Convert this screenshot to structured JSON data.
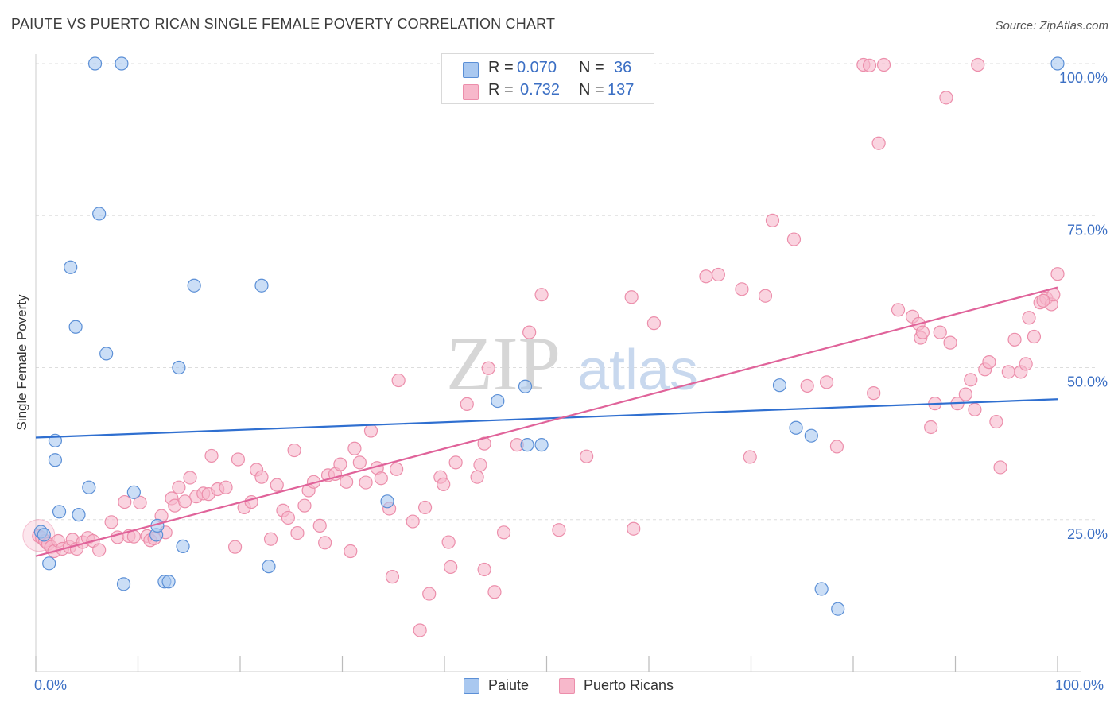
{
  "header": {
    "title": "PAIUTE VS PUERTO RICAN SINGLE FEMALE POVERTY CORRELATION CHART",
    "source": "Source: ZipAtlas.com"
  },
  "watermark": {
    "zip": "ZIP",
    "atlas": "atlas"
  },
  "stats": {
    "rows": [
      {
        "r_label": "R =",
        "r_value": "0.070",
        "n_label": "N =",
        "n_value": "36"
      },
      {
        "r_label": "R =",
        "r_value": "0.732",
        "n_label": "N =",
        "n_value": "137"
      }
    ]
  },
  "colors": {
    "paiute_fill": "#a9c8f0",
    "paiute_stroke": "#5b8fd6",
    "paiute_line": "#2f6fd0",
    "pr_fill": "#f7b8cb",
    "pr_stroke": "#ec8eab",
    "pr_line": "#e0639a",
    "axis_label": "#3b6fc4",
    "grid": "#dddddd"
  },
  "chart_data": {
    "type": "scatter",
    "title": "PAIUTE VS PUERTO RICAN SINGLE FEMALE POVERTY CORRELATION CHART",
    "xlabel": "",
    "ylabel": "Single Female Poverty",
    "xlim": [
      0,
      100
    ],
    "ylim": [
      0,
      100
    ],
    "x_tick_labels": [
      "0.0%",
      "100.0%"
    ],
    "y_tick_labels": [
      "25.0%",
      "50.0%",
      "75.0%",
      "100.0%"
    ],
    "y_ticks": [
      25,
      50,
      75,
      100
    ],
    "grid": true,
    "legend": [
      "Paiute",
      "Puerto Ricans"
    ],
    "series": [
      {
        "name": "Paiute",
        "trend": {
          "x": [
            0,
            100
          ],
          "y": [
            38.5,
            44.8
          ]
        },
        "points": [
          [
            5.8,
            100
          ],
          [
            8.4,
            100
          ],
          [
            100,
            100
          ],
          [
            6.2,
            75.3
          ],
          [
            3.4,
            66.5
          ],
          [
            3.9,
            56.7
          ],
          [
            6.9,
            52.3
          ],
          [
            15.5,
            63.5
          ],
          [
            22.1,
            63.5
          ],
          [
            14,
            50
          ],
          [
            1.9,
            38
          ],
          [
            1.9,
            34.8
          ],
          [
            5.2,
            30.3
          ],
          [
            9.6,
            29.5
          ],
          [
            2.3,
            26.3
          ],
          [
            4.2,
            25.8
          ],
          [
            0.5,
            23
          ],
          [
            11.8,
            22.5
          ],
          [
            11.9,
            24
          ],
          [
            1.3,
            17.8
          ],
          [
            14.4,
            20.6
          ],
          [
            8.6,
            14.4
          ],
          [
            12.6,
            14.8
          ],
          [
            13,
            14.8
          ],
          [
            22.8,
            17.3
          ],
          [
            34.4,
            28
          ],
          [
            49.5,
            37.3
          ],
          [
            45.2,
            44.5
          ],
          [
            48.1,
            37.3
          ],
          [
            47.9,
            46.9
          ],
          [
            72.8,
            47.1
          ],
          [
            74.4,
            40.1
          ],
          [
            75.9,
            38.8
          ],
          [
            76.9,
            13.6
          ],
          [
            78.5,
            10.3
          ],
          [
            0.8,
            22.5
          ]
        ]
      },
      {
        "name": "Puerto Ricans",
        "trend": {
          "x": [
            0,
            100
          ],
          "y": [
            19,
            63.2
          ]
        },
        "points": [
          [
            0.3,
            22.3
          ],
          [
            0.6,
            22
          ],
          [
            0.9,
            21.5
          ],
          [
            1.2,
            21
          ],
          [
            1.5,
            20.5
          ],
          [
            1.8,
            19.8
          ],
          [
            2.2,
            21.5
          ],
          [
            2.6,
            20.2
          ],
          [
            3.3,
            20.5
          ],
          [
            3.6,
            21.7
          ],
          [
            4,
            20.2
          ],
          [
            4.6,
            21.3
          ],
          [
            5.1,
            22
          ],
          [
            5.6,
            21.5
          ],
          [
            6.2,
            20
          ],
          [
            7.4,
            24.6
          ],
          [
            8,
            22.1
          ],
          [
            8.7,
            27.9
          ],
          [
            9.1,
            22.3
          ],
          [
            9.6,
            22.2
          ],
          [
            10.2,
            27.8
          ],
          [
            10.9,
            22.3
          ],
          [
            11.2,
            21.6
          ],
          [
            11.6,
            21.9
          ],
          [
            12.3,
            25.6
          ],
          [
            12.7,
            22.9
          ],
          [
            13.3,
            28.5
          ],
          [
            13.6,
            27.3
          ],
          [
            14,
            30.3
          ],
          [
            14.6,
            28
          ],
          [
            15.1,
            31.9
          ],
          [
            15.7,
            28.8
          ],
          [
            16.4,
            29.3
          ],
          [
            16.9,
            29.2
          ],
          [
            17.2,
            35.5
          ],
          [
            17.8,
            30
          ],
          [
            18.6,
            30.3
          ],
          [
            19.5,
            20.5
          ],
          [
            19.8,
            34.9
          ],
          [
            20.4,
            27
          ],
          [
            21.1,
            27.9
          ],
          [
            21.6,
            33.2
          ],
          [
            22.1,
            32
          ],
          [
            23.6,
            30.7
          ],
          [
            23,
            21.8
          ],
          [
            24.2,
            26.5
          ],
          [
            24.7,
            25.3
          ],
          [
            25.3,
            36.4
          ],
          [
            25.6,
            22.8
          ],
          [
            26.3,
            27.3
          ],
          [
            26.7,
            29.8
          ],
          [
            27.2,
            31.2
          ],
          [
            27.8,
            24
          ],
          [
            28.3,
            21.2
          ],
          [
            28.6,
            32.3
          ],
          [
            29.3,
            32.5
          ],
          [
            29.8,
            34.1
          ],
          [
            30.4,
            31.2
          ],
          [
            30.8,
            19.8
          ],
          [
            31.2,
            36.7
          ],
          [
            31.7,
            34.4
          ],
          [
            32.3,
            31.1
          ],
          [
            32.8,
            39.6
          ],
          [
            33.4,
            33.5
          ],
          [
            33.8,
            31.8
          ],
          [
            35.3,
            33.3
          ],
          [
            34.6,
            26.8
          ],
          [
            35.5,
            47.9
          ],
          [
            34.9,
            15.6
          ],
          [
            36.9,
            24.7
          ],
          [
            38.1,
            27
          ],
          [
            38.5,
            12.8
          ],
          [
            37.6,
            6.8
          ],
          [
            39.6,
            32
          ],
          [
            39.9,
            30.8
          ],
          [
            40.4,
            21.3
          ],
          [
            40.6,
            17.2
          ],
          [
            41.1,
            34.4
          ],
          [
            42.2,
            44
          ],
          [
            43.5,
            34
          ],
          [
            43.9,
            16.8
          ],
          [
            43.2,
            32
          ],
          [
            43.9,
            37.5
          ],
          [
            44.9,
            13.1
          ],
          [
            44.3,
            49.9
          ],
          [
            45.8,
            22.9
          ],
          [
            47.1,
            37.3
          ],
          [
            48.3,
            55.8
          ],
          [
            49.5,
            62
          ],
          [
            51.2,
            23.3
          ],
          [
            53.9,
            35.4
          ],
          [
            58.3,
            61.6
          ],
          [
            58.5,
            23.5
          ],
          [
            60.5,
            57.3
          ],
          [
            65.6,
            65
          ],
          [
            66.8,
            65.3
          ],
          [
            69.1,
            62.9
          ],
          [
            69.9,
            35.3
          ],
          [
            71.4,
            61.8
          ],
          [
            72.1,
            74.2
          ],
          [
            74.2,
            71.1
          ],
          [
            75.5,
            47
          ],
          [
            77.4,
            47.6
          ],
          [
            78.4,
            37
          ],
          [
            81,
            99.8
          ],
          [
            81.6,
            99.7
          ],
          [
            82,
            45.8
          ],
          [
            82.5,
            86.9
          ],
          [
            83,
            99.8
          ],
          [
            84.4,
            59.5
          ],
          [
            85.8,
            58.4
          ],
          [
            86.4,
            57.2
          ],
          [
            86.6,
            54.9
          ],
          [
            86.8,
            55.8
          ],
          [
            87.6,
            40.2
          ],
          [
            88,
            44.1
          ],
          [
            88.5,
            55.8
          ],
          [
            89.1,
            94.4
          ],
          [
            89.5,
            54.1
          ],
          [
            90.2,
            44.1
          ],
          [
            91,
            45.6
          ],
          [
            91.5,
            48
          ],
          [
            91.9,
            43.1
          ],
          [
            92.2,
            99.8
          ],
          [
            92.9,
            49.7
          ],
          [
            93.3,
            50.9
          ],
          [
            94,
            41.1
          ],
          [
            94.4,
            33.6
          ],
          [
            95.2,
            49.3
          ],
          [
            95.8,
            54.6
          ],
          [
            96.4,
            49.3
          ],
          [
            96.9,
            50.6
          ],
          [
            97.2,
            58.2
          ],
          [
            97.7,
            55.1
          ],
          [
            98.3,
            60.7
          ],
          [
            98.9,
            61.4
          ],
          [
            99.4,
            60.4
          ],
          [
            99.6,
            62
          ],
          [
            100,
            65.4
          ],
          [
            98.6,
            61
          ]
        ]
      }
    ]
  }
}
